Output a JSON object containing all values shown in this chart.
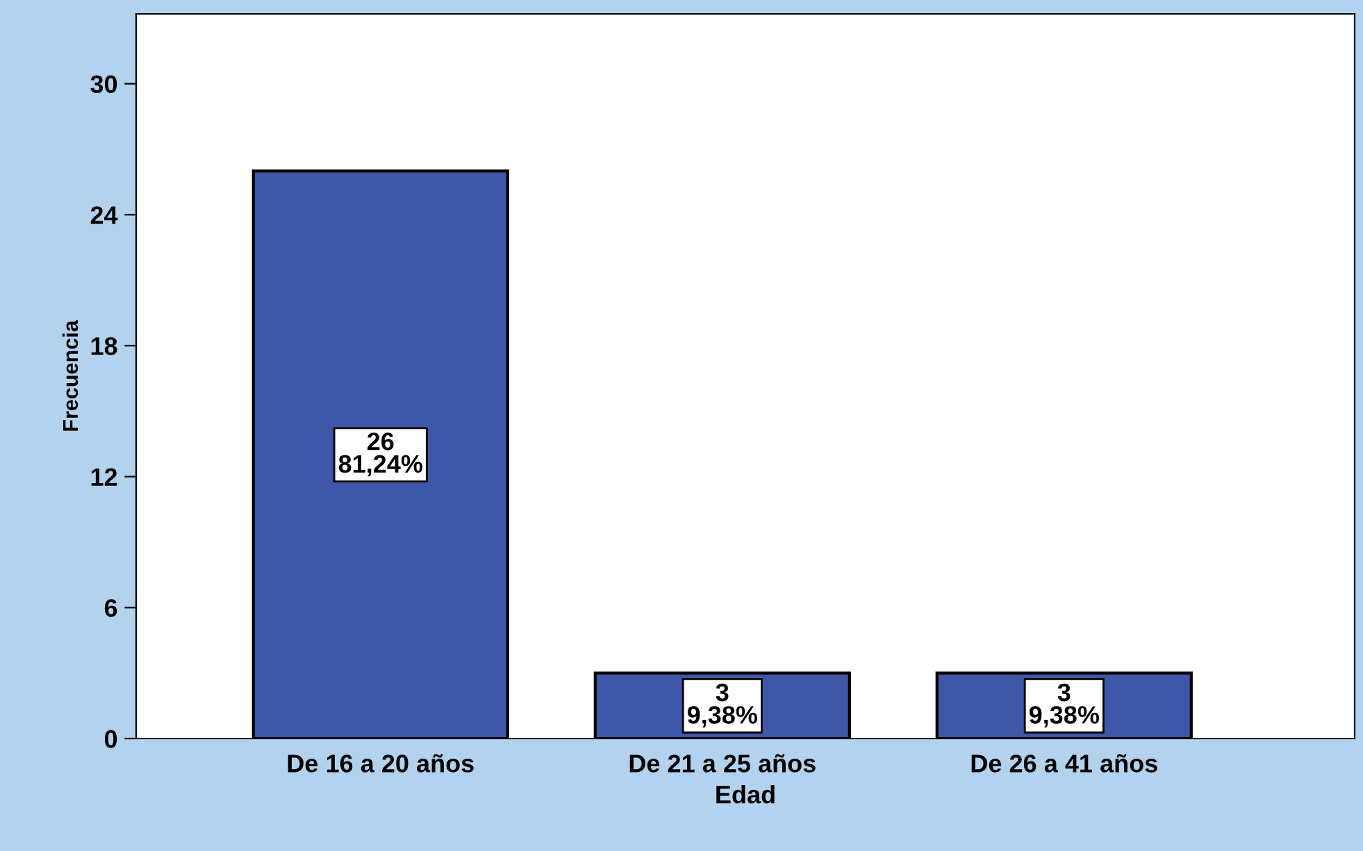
{
  "chart_data": {
    "type": "bar",
    "xlabel": "Edad",
    "ylabel": "Frecuencia",
    "categories": [
      "De 16 a 20 años",
      "De 21 a 25 años",
      "De 26 a 41 años"
    ],
    "values": [
      26,
      3,
      3
    ],
    "value_labels": [
      "26\n81,24%",
      "3\n9,38%",
      "3\n9,38%"
    ],
    "color": "#3f57a8",
    "ylim": [
      0,
      33.2
    ],
    "yticks": [
      0,
      6,
      12,
      18,
      24,
      30
    ],
    "grid": false,
    "legend": false
  }
}
